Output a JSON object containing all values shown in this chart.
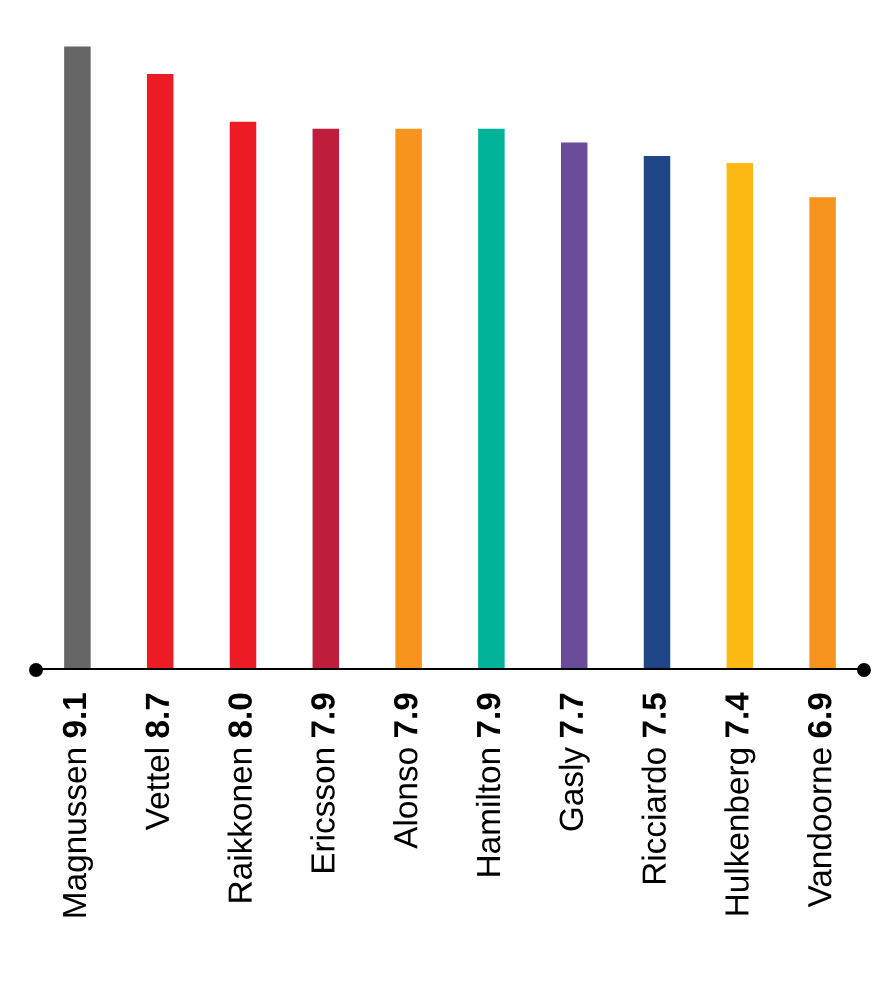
{
  "chart_data": {
    "type": "bar",
    "categories": [
      "Magnussen",
      "Vettel",
      "Raikkonen",
      "Ericsson",
      "Alonso",
      "Hamilton",
      "Gasly",
      "Ricciardo",
      "Hulkenberg",
      "Vandoorne"
    ],
    "values": [
      9.1,
      8.7,
      8.0,
      7.9,
      7.9,
      7.9,
      7.7,
      7.5,
      7.4,
      6.9
    ],
    "colors": [
      "#666666",
      "#ed1c24",
      "#ed1c24",
      "#be1e3c",
      "#f7941d",
      "#00b398",
      "#6b4c9a",
      "#1f4788",
      "#fdb913",
      "#f7941d"
    ],
    "value_labels": [
      "9.1",
      "8.7",
      "8.0",
      "7.9",
      "7.9",
      "7.9",
      "7.7",
      "7.5",
      "7.4",
      "6.9"
    ]
  }
}
